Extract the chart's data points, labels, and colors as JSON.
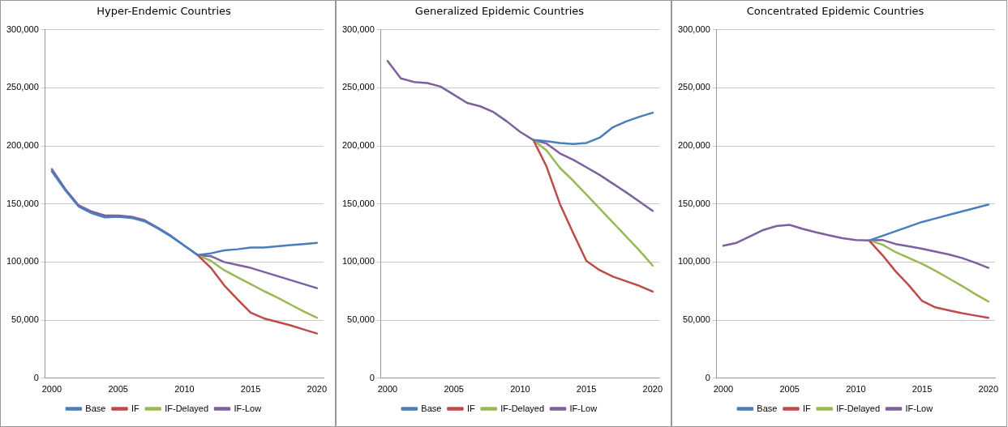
{
  "chart_data": [
    {
      "type": "line",
      "title": "Hyper-Endemic Countries",
      "categories": [
        "2000",
        null,
        null,
        null,
        null,
        "2005",
        null,
        null,
        null,
        null,
        "2010",
        null,
        null,
        null,
        null,
        "2015",
        null,
        null,
        null,
        null,
        "2020"
      ],
      "ylim": [
        0,
        300000
      ],
      "yticks": [
        {
          "value": 0,
          "label": "0"
        },
        {
          "value": 50000,
          "label": "50,000"
        },
        {
          "value": 100000,
          "label": "100,000"
        },
        {
          "value": 150000,
          "label": "150,000"
        },
        {
          "value": 200000,
          "label": "200,000"
        },
        {
          "value": 250000,
          "label": "250,000"
        },
        {
          "value": 300000,
          "label": "300,000"
        }
      ],
      "grid": "y",
      "legend": "bottom",
      "marker": "none",
      "line_style": "solid",
      "series": [
        {
          "name": "Base",
          "color": "#4a7ebb",
          "values": [
            178000,
            162000,
            148000,
            142000,
            138500,
            139000,
            138000,
            135000,
            129000,
            122000,
            114000,
            106000,
            107500,
            110000,
            111000,
            112500,
            112500,
            113500,
            114500,
            115500,
            116500
          ]
        },
        {
          "name": "IF",
          "color": "#be4b48",
          "values": [
            null,
            null,
            null,
            null,
            null,
            null,
            null,
            null,
            null,
            null,
            null,
            106000,
            95000,
            80000,
            68000,
            56500,
            51500,
            48500,
            45500,
            42000,
            38500
          ]
        },
        {
          "name": "IF-Delayed",
          "color": "#98b954",
          "values": [
            null,
            null,
            null,
            null,
            null,
            null,
            null,
            null,
            null,
            null,
            null,
            106000,
            101000,
            93000,
            87000,
            81000,
            75000,
            69500,
            63500,
            57500,
            52000
          ]
        },
        {
          "name": "IF-Low",
          "color": "#7d60a0",
          "values": [
            180000,
            163000,
            149000,
            143500,
            140000,
            140000,
            139000,
            136000,
            129500,
            122500,
            114000,
            106000,
            105000,
            100000,
            97500,
            95000,
            91500,
            88000,
            84500,
            81000,
            77500
          ]
        }
      ]
    },
    {
      "type": "line",
      "title": "Generalized Epidemic Countries",
      "categories": [
        "2000",
        null,
        null,
        null,
        null,
        "2005",
        null,
        null,
        null,
        null,
        "2010",
        null,
        null,
        null,
        null,
        "2015",
        null,
        null,
        null,
        null,
        "2020"
      ],
      "ylim": [
        0,
        300000
      ],
      "yticks": [
        {
          "value": 0,
          "label": "0"
        },
        {
          "value": 50000,
          "label": "50,000"
        },
        {
          "value": 100000,
          "label": "100,000"
        },
        {
          "value": 150000,
          "label": "150,000"
        },
        {
          "value": 200000,
          "label": "200,000"
        },
        {
          "value": 250000,
          "label": "250,000"
        },
        {
          "value": 300000,
          "label": "300,000"
        }
      ],
      "grid": "y",
      "legend": "bottom",
      "marker": "none",
      "line_style": "solid",
      "series": [
        {
          "name": "Base",
          "color": "#4a7ebb",
          "values": [
            null,
            null,
            null,
            null,
            null,
            null,
            null,
            null,
            null,
            null,
            null,
            205000,
            204000,
            202500,
            201500,
            202500,
            207000,
            216000,
            221000,
            225000,
            228500
          ]
        },
        {
          "name": "IF",
          "color": "#be4b48",
          "values": [
            null,
            null,
            null,
            null,
            null,
            null,
            null,
            null,
            null,
            null,
            null,
            205000,
            182000,
            150000,
            125000,
            101000,
            93000,
            87500,
            83500,
            79500,
            74500
          ]
        },
        {
          "name": "IF-Delayed",
          "color": "#98b954",
          "values": [
            null,
            null,
            null,
            null,
            null,
            null,
            null,
            null,
            null,
            null,
            null,
            205000,
            196000,
            181000,
            170000,
            158000,
            146000,
            134000,
            122000,
            110000,
            97000
          ]
        },
        {
          "name": "IF-Low",
          "color": "#7d60a0",
          "values": [
            273000,
            258000,
            255000,
            254000,
            251000,
            244000,
            237000,
            234000,
            229000,
            221000,
            212000,
            205000,
            202000,
            193500,
            188000,
            181500,
            175000,
            167500,
            160000,
            152000,
            144000
          ]
        }
      ]
    },
    {
      "type": "line",
      "title": "Concentrated Epidemic Countries",
      "categories": [
        "2000",
        null,
        null,
        null,
        null,
        "2005",
        null,
        null,
        null,
        null,
        "2010",
        null,
        null,
        null,
        null,
        "2015",
        null,
        null,
        null,
        null,
        "2020"
      ],
      "ylim": [
        0,
        300000
      ],
      "yticks": [
        {
          "value": 0,
          "label": "0"
        },
        {
          "value": 50000,
          "label": "50,000"
        },
        {
          "value": 100000,
          "label": "100,000"
        },
        {
          "value": 150000,
          "label": "150,000"
        },
        {
          "value": 200000,
          "label": "200,000"
        },
        {
          "value": 250000,
          "label": "250,000"
        },
        {
          "value": 300000,
          "label": "300,000"
        }
      ],
      "grid": "y",
      "legend": "bottom",
      "marker": "none",
      "line_style": "solid",
      "series": [
        {
          "name": "Base",
          "color": "#4a7ebb",
          "values": [
            null,
            null,
            null,
            null,
            null,
            null,
            null,
            null,
            null,
            null,
            null,
            118500,
            122500,
            126500,
            130500,
            134500,
            137500,
            140500,
            143500,
            146500,
            149500
          ]
        },
        {
          "name": "IF",
          "color": "#be4b48",
          "values": [
            null,
            null,
            null,
            null,
            null,
            null,
            null,
            null,
            null,
            null,
            null,
            118500,
            106000,
            92000,
            80000,
            66500,
            61000,
            58500,
            56000,
            54000,
            52000
          ]
        },
        {
          "name": "IF-Delayed",
          "color": "#98b954",
          "values": [
            null,
            null,
            null,
            null,
            null,
            null,
            null,
            null,
            null,
            null,
            null,
            118500,
            115000,
            108500,
            103500,
            98500,
            92500,
            86000,
            79500,
            72500,
            66000
          ]
        },
        {
          "name": "IF-Low",
          "color": "#7d60a0",
          "values": [
            114000,
            116500,
            122000,
            127500,
            131000,
            132000,
            128500,
            125500,
            123000,
            120500,
            119000,
            118500,
            119000,
            115500,
            113500,
            111500,
            109000,
            106500,
            103500,
            99500,
            95000
          ]
        }
      ]
    }
  ]
}
